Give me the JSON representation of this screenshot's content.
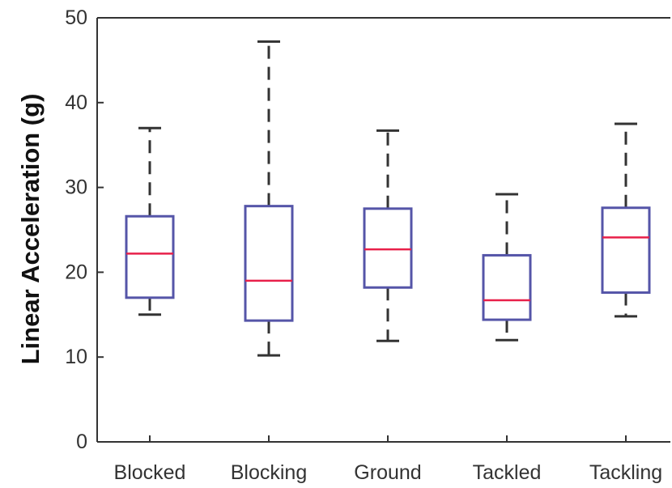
{
  "chart_data": {
    "type": "box",
    "ylabel": "Linear Acceleration (g)",
    "ylim": [
      0,
      50
    ],
    "yticks": [
      0,
      10,
      20,
      30,
      40,
      50
    ],
    "grid": false,
    "categories": [
      "Blocked",
      "Blocking",
      "Ground",
      "Tackled",
      "Tackling"
    ],
    "boxes": [
      {
        "category": "Blocked",
        "whisker_low": 15.0,
        "q1": 17.0,
        "median": 22.2,
        "q3": 26.6,
        "whisker_high": 37.0
      },
      {
        "category": "Blocking",
        "whisker_low": 10.2,
        "q1": 14.3,
        "median": 19.0,
        "q3": 27.8,
        "whisker_high": 47.2
      },
      {
        "category": "Ground",
        "whisker_low": 11.9,
        "q1": 18.2,
        "median": 22.7,
        "q3": 27.5,
        "whisker_high": 36.7
      },
      {
        "category": "Tackled",
        "whisker_low": 12.0,
        "q1": 14.4,
        "median": 16.7,
        "q3": 22.0,
        "whisker_high": 29.2
      },
      {
        "category": "Tackling",
        "whisker_low": 14.8,
        "q1": 17.6,
        "median": 24.1,
        "q3": 27.6,
        "whisker_high": 37.5
      }
    ],
    "colors": {
      "box": "#5555a8",
      "median": "#e8204a",
      "whisker": "#333333",
      "axis": "#333333"
    }
  }
}
